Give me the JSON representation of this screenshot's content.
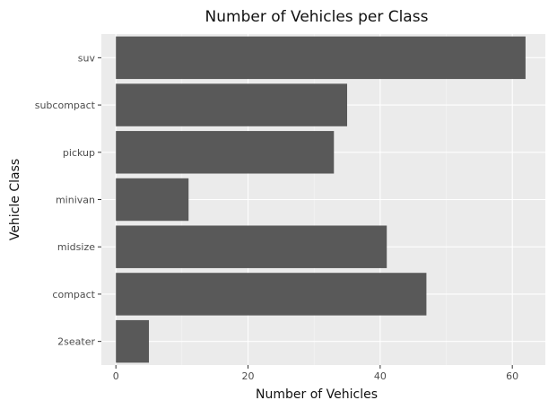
{
  "chart_data": {
    "type": "bar",
    "orientation": "horizontal",
    "title": "Number of Vehicles per Class",
    "xlabel": "Number of Vehicles",
    "ylabel": "Vehicle Class",
    "categories": [
      "2seater",
      "compact",
      "midsize",
      "minivan",
      "pickup",
      "subcompact",
      "suv"
    ],
    "values": [
      5,
      47,
      41,
      11,
      33,
      35,
      62
    ],
    "xlim": [
      -2.2,
      65
    ],
    "xticks": [
      0,
      20,
      40,
      60
    ],
    "x_minor_ticks": [
      10,
      30,
      50
    ],
    "grid": true,
    "legend": "none",
    "colors": {
      "bar": "#595959",
      "panel": "#ebebeb",
      "grid_major": "#ffffff",
      "grid_minor": "#f5f5f5",
      "tick": "#333333"
    }
  }
}
